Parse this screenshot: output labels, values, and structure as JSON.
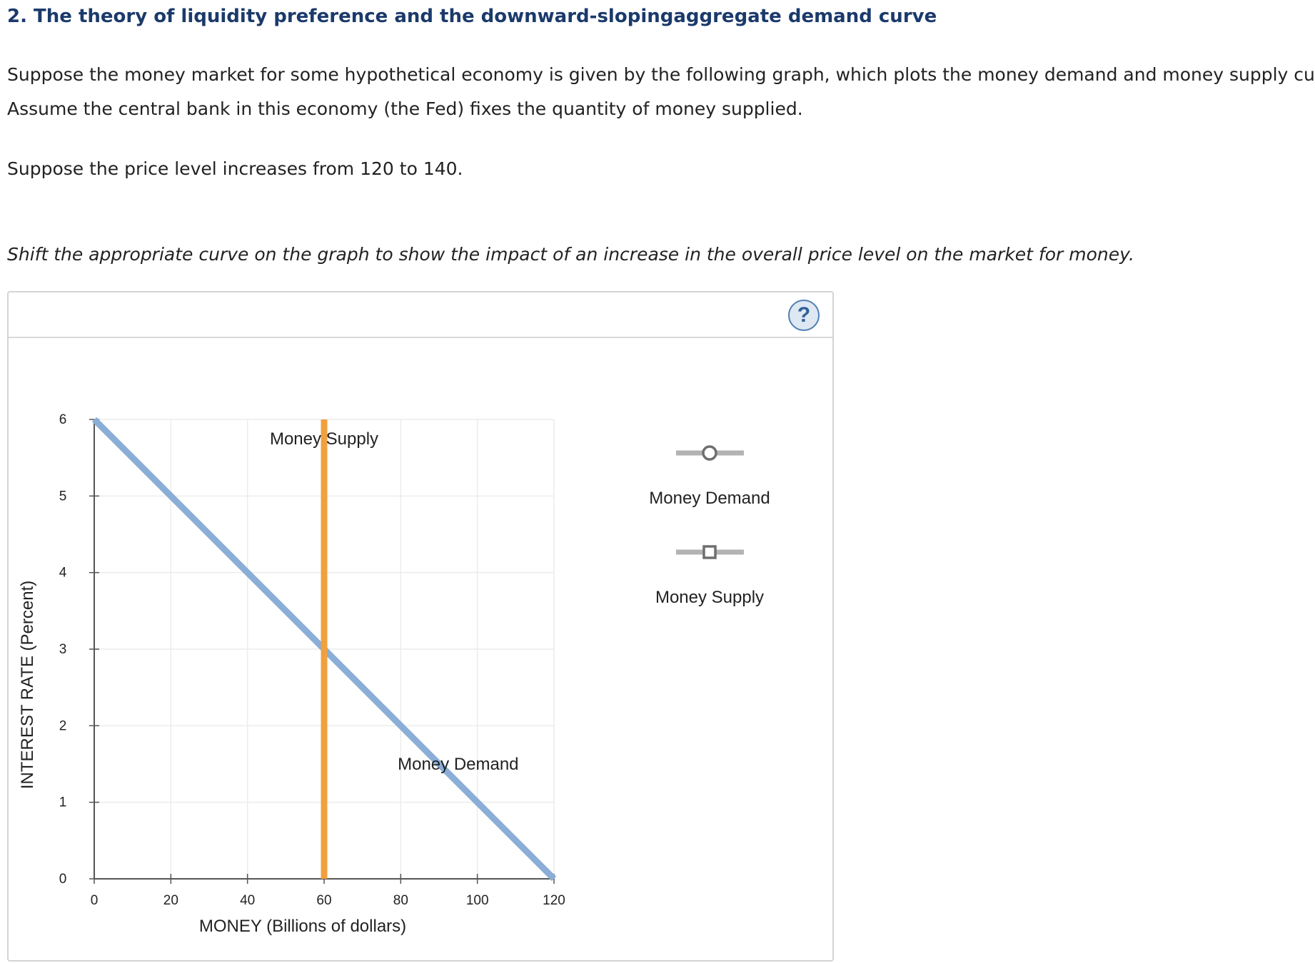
{
  "question": {
    "title": "2. The theory of liquidity preference and the downward-slopingaggregate demand curve",
    "paragraph_1_line_1": "Suppose the money market for some hypothetical economy is given by the following graph, which plots the money demand and money supply curves.",
    "paragraph_1_line_2": "Assume the central bank in this economy (the Fed) fixes the quantity of money supplied.",
    "paragraph_2": "Suppose the price level increases from 120 to 140.",
    "instruction": "Shift the appropriate curve on the graph to show the impact of an increase in the overall price level on the market for money."
  },
  "panel": {
    "help_label": "?"
  },
  "legend": {
    "items": [
      {
        "label": "Money Demand",
        "icon": "circle-marker-icon"
      },
      {
        "label": "Money Supply",
        "icon": "square-marker-icon"
      }
    ]
  },
  "chart_data": {
    "type": "line",
    "xlabel": "MONEY (Billions of dollars)",
    "ylabel": "INTEREST RATE (Percent)",
    "xlim": [
      0,
      120
    ],
    "ylim": [
      0,
      6
    ],
    "x_ticks": [
      "0",
      "20",
      "40",
      "60",
      "80",
      "100",
      "120"
    ],
    "y_ticks": [
      "0",
      "1",
      "2",
      "3",
      "4",
      "5",
      "6"
    ],
    "grid": true,
    "series": [
      {
        "name": "Money Demand",
        "color": "#8aaed6",
        "points": [
          [
            0,
            6
          ],
          [
            120,
            0
          ]
        ],
        "label_at": [
          95,
          1.5
        ]
      },
      {
        "name": "Money Supply",
        "color": "#f0a03e",
        "points": [
          [
            60,
            0
          ],
          [
            60,
            6
          ]
        ],
        "label_at": [
          60,
          5.75
        ]
      }
    ]
  }
}
